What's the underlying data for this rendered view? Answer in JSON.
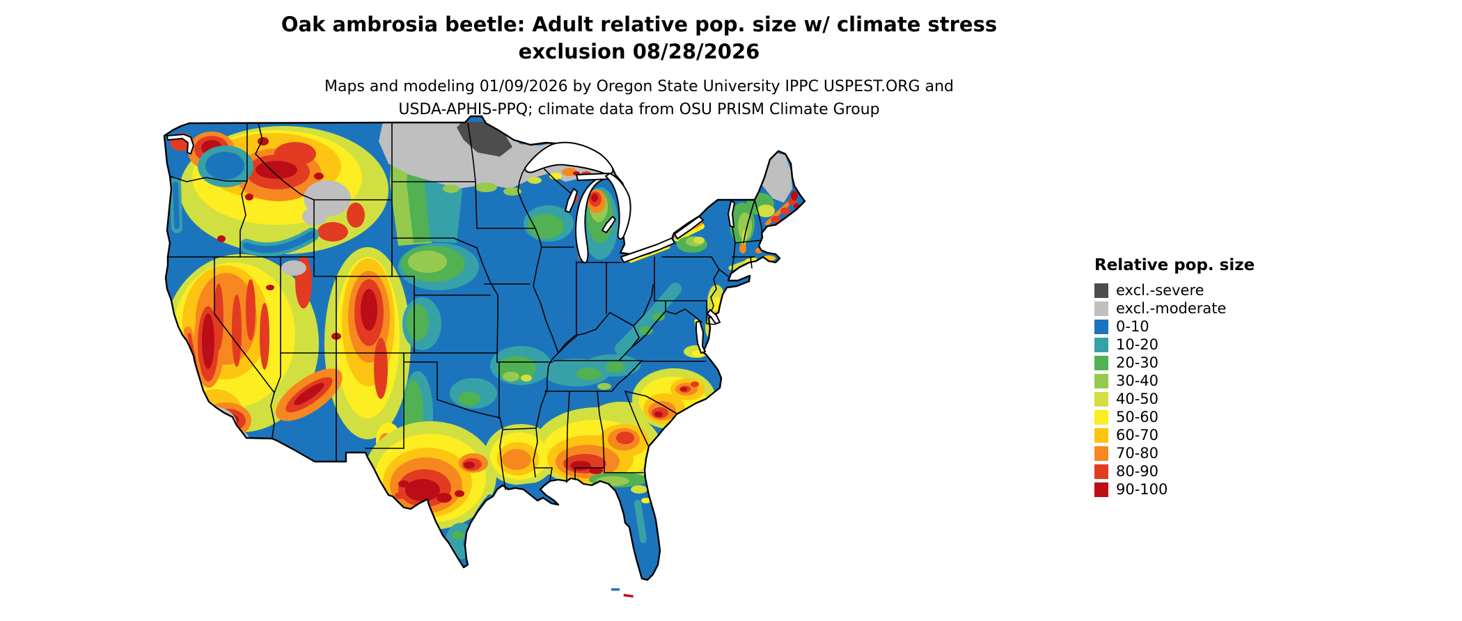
{
  "title": {
    "line1": "Oak ambrosia beetle: Adult relative pop. size w/ climate stress",
    "line2": "exclusion 08/28/2026"
  },
  "subtitle": {
    "line1": "Maps and modeling 01/09/2026 by Oregon State University IPPC USPEST.ORG and",
    "line2": "USDA-APHIS-PPQ; climate data from OSU PRISM Climate Group"
  },
  "legend": {
    "title": "Relative pop. size",
    "items": [
      {
        "label": "excl.-severe",
        "color": "#4d4d4d"
      },
      {
        "label": "excl.-moderate",
        "color": "#bfbfbf"
      },
      {
        "label": "0-10",
        "color": "#1c75bc"
      },
      {
        "label": "10-20",
        "color": "#37a1a8"
      },
      {
        "label": "20-30",
        "color": "#51b153"
      },
      {
        "label": "30-40",
        "color": "#96ca4f"
      },
      {
        "label": "40-50",
        "color": "#d1e040"
      },
      {
        "label": "50-60",
        "color": "#fcee21"
      },
      {
        "label": "60-70",
        "color": "#fdc411"
      },
      {
        "label": "70-80",
        "color": "#f6881f"
      },
      {
        "label": "80-90",
        "color": "#e23b22"
      },
      {
        "label": "90-100",
        "color": "#bb0d17"
      }
    ]
  },
  "map": {
    "region": "Continental United States",
    "kind": "raster choropleth of relative population size with state boundaries",
    "boundary_color": "#000000",
    "water_color": "#ffffff",
    "background_color": "#ffffff"
  }
}
